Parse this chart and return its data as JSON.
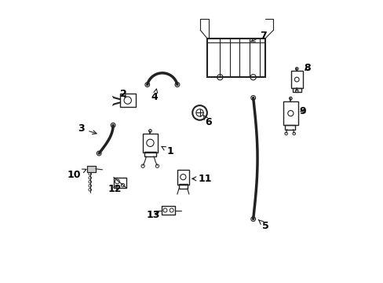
{
  "background_color": "#ffffff",
  "line_color": "#222222",
  "label_color": "#000000",
  "fig_width": 4.89,
  "fig_height": 3.6,
  "dpi": 100,
  "font_size": 9
}
